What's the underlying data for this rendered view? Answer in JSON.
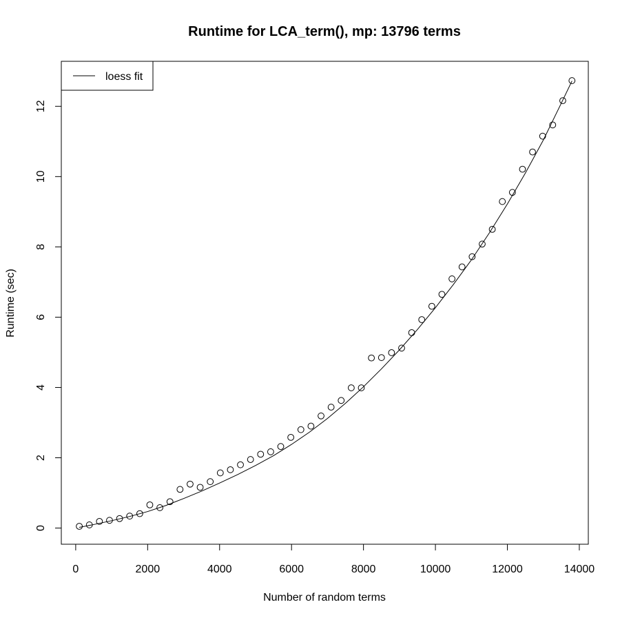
{
  "chart_data": {
    "type": "scatter",
    "title": "Runtime for LCA_term(), mp: 13796 terms",
    "xlabel": "Number of random terms",
    "ylabel": "Runtime (sec)",
    "xlim": [
      -400,
      14250
    ],
    "ylim": [
      -0.46,
      13.28
    ],
    "x_ticks": [
      0,
      2000,
      4000,
      6000,
      8000,
      10000,
      12000,
      14000
    ],
    "y_ticks": [
      0,
      2,
      4,
      6,
      8,
      10,
      12
    ],
    "grid": false,
    "legend": {
      "position": "top-left",
      "entries": [
        {
          "label": "loess fit",
          "symbol": "line"
        }
      ]
    },
    "series": [
      {
        "kind": "points",
        "marker": "open-circle",
        "x": [
          100,
          380,
          660,
          940,
          1220,
          1500,
          1780,
          2060,
          2340,
          2620,
          2900,
          3180,
          3460,
          3740,
          4020,
          4300,
          4580,
          4860,
          5140,
          5420,
          5700,
          5980,
          6260,
          6540,
          6820,
          7100,
          7380,
          7660,
          7940,
          8220,
          8500,
          8780,
          9060,
          9340,
          9620,
          9900,
          10180,
          10460,
          10740,
          11020,
          11300,
          11580,
          11860,
          12140,
          12420,
          12700,
          12980,
          13260,
          13540,
          13796
        ],
        "y": [
          0.05,
          0.09,
          0.19,
          0.22,
          0.27,
          0.34,
          0.41,
          0.66,
          0.58,
          0.75,
          1.1,
          1.25,
          1.16,
          1.32,
          1.57,
          1.66,
          1.8,
          1.95,
          2.1,
          2.17,
          2.32,
          2.58,
          2.8,
          2.9,
          3.19,
          3.44,
          3.63,
          3.99,
          3.99,
          4.84,
          4.85,
          4.99,
          5.12,
          5.56,
          5.93,
          6.31,
          6.65,
          7.09,
          7.43,
          7.72,
          8.08,
          8.5,
          9.29,
          9.55,
          10.21,
          10.7,
          11.15,
          11.47,
          12.16,
          12.73
        ]
      },
      {
        "kind": "line",
        "x": [
          100,
          500,
          1000,
          1500,
          2000,
          2500,
          3000,
          3500,
          4000,
          4500,
          5000,
          5500,
          6000,
          6500,
          7000,
          7500,
          8000,
          8500,
          9000,
          9500,
          10000,
          10500,
          11000,
          11500,
          12000,
          12500,
          13000,
          13500,
          13796
        ],
        "y": [
          0.02,
          0.1,
          0.21,
          0.33,
          0.47,
          0.64,
          0.84,
          1.05,
          1.28,
          1.52,
          1.78,
          2.06,
          2.38,
          2.73,
          3.12,
          3.55,
          4.02,
          4.53,
          5.07,
          5.65,
          6.27,
          6.93,
          7.63,
          8.4,
          9.22,
          10.1,
          11.04,
          12.09,
          12.72
        ]
      }
    ]
  }
}
